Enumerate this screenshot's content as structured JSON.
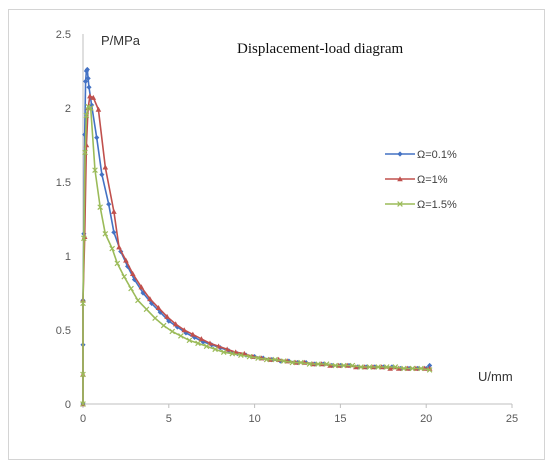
{
  "chart_data": {
    "type": "line",
    "title": "Displacement-load diagram",
    "xlabel": "U/mm",
    "ylabel": "P/MPa",
    "xlim": [
      0,
      25
    ],
    "ylim": [
      0,
      2.5
    ],
    "xticks": [
      "0",
      "5",
      "10",
      "15",
      "20",
      "25"
    ],
    "yticks": [
      "0",
      "0.5",
      "1",
      "1.5",
      "2",
      "2.5"
    ],
    "grid": false,
    "legend_position": "right",
    "series": [
      {
        "name": "Ω=0.1%",
        "color": "#4472C4",
        "marker": "diamond",
        "x": [
          0,
          0,
          0,
          0.05,
          0.1,
          0.15,
          0.2,
          0.25,
          0.3,
          0.35,
          0.5,
          0.8,
          1.1,
          1.5,
          1.8,
          2.2,
          2.6,
          3.0,
          3.5,
          4.0,
          4.5,
          5.0,
          5.5,
          6.0,
          6.5,
          7.0,
          7.5,
          8.0,
          8.5,
          9.0,
          9.5,
          10.0,
          10.5,
          11.0,
          11.5,
          12.0,
          12.5,
          13.0,
          13.5,
          14.0,
          14.5,
          15.0,
          15.5,
          16.0,
          16.5,
          17.0,
          17.5,
          18.0,
          18.5,
          19.0,
          19.5,
          20.0,
          20.2
        ],
        "y": [
          0,
          0.4,
          0.7,
          1.15,
          1.82,
          2.18,
          2.25,
          2.26,
          2.2,
          2.14,
          2.02,
          1.8,
          1.55,
          1.35,
          1.16,
          1.03,
          0.93,
          0.84,
          0.75,
          0.68,
          0.62,
          0.56,
          0.52,
          0.48,
          0.45,
          0.42,
          0.4,
          0.38,
          0.36,
          0.34,
          0.33,
          0.32,
          0.31,
          0.3,
          0.29,
          0.29,
          0.28,
          0.28,
          0.27,
          0.27,
          0.26,
          0.26,
          0.26,
          0.25,
          0.25,
          0.25,
          0.25,
          0.25,
          0.24,
          0.24,
          0.24,
          0.24,
          0.26
        ]
      },
      {
        "name": "Ω=1%",
        "color": "#C0504D",
        "marker": "triangle",
        "x": [
          0,
          0,
          0,
          0.1,
          0.2,
          0.3,
          0.4,
          0.6,
          0.9,
          1.3,
          1.8,
          2.1,
          2.5,
          2.9,
          3.4,
          3.9,
          4.4,
          4.9,
          5.4,
          5.9,
          6.4,
          6.9,
          7.4,
          7.9,
          8.4,
          8.9,
          9.4,
          9.9,
          10.4,
          10.9,
          11.4,
          11.9,
          12.4,
          12.9,
          13.4,
          13.9,
          14.4,
          14.9,
          15.4,
          15.9,
          16.4,
          16.9,
          17.4,
          17.9,
          18.4,
          18.9,
          19.4,
          19.9,
          20.2
        ],
        "y": [
          0,
          0.2,
          0.7,
          1.13,
          1.75,
          2.0,
          2.08,
          2.07,
          1.99,
          1.6,
          1.3,
          1.06,
          0.97,
          0.88,
          0.79,
          0.71,
          0.65,
          0.59,
          0.54,
          0.5,
          0.47,
          0.44,
          0.41,
          0.39,
          0.37,
          0.35,
          0.34,
          0.32,
          0.31,
          0.3,
          0.3,
          0.29,
          0.28,
          0.28,
          0.27,
          0.27,
          0.26,
          0.26,
          0.26,
          0.25,
          0.25,
          0.25,
          0.25,
          0.24,
          0.24,
          0.24,
          0.24,
          0.24,
          0.24
        ]
      },
      {
        "name": "Ω=1.5%",
        "color": "#9BBB59",
        "marker": "x",
        "x": [
          0,
          0,
          0,
          0.05,
          0.12,
          0.2,
          0.3,
          0.45,
          0.7,
          1.0,
          1.3,
          1.7,
          2.0,
          2.4,
          2.8,
          3.2,
          3.7,
          4.2,
          4.7,
          5.2,
          5.7,
          6.2,
          6.7,
          7.2,
          7.7,
          8.2,
          8.7,
          9.2,
          9.7,
          10.2,
          10.7,
          11.2,
          11.7,
          12.2,
          12.7,
          13.2,
          13.7,
          14.2,
          14.7,
          15.2,
          15.7,
          16.2,
          16.7,
          17.2,
          17.7,
          18.2,
          18.7,
          19.2,
          19.7,
          20.2
        ],
        "y": [
          0,
          0.2,
          0.68,
          1.12,
          1.7,
          1.95,
          2.01,
          2.0,
          1.58,
          1.33,
          1.15,
          1.05,
          0.95,
          0.86,
          0.78,
          0.7,
          0.64,
          0.58,
          0.53,
          0.49,
          0.46,
          0.43,
          0.41,
          0.39,
          0.37,
          0.35,
          0.34,
          0.33,
          0.32,
          0.31,
          0.3,
          0.3,
          0.29,
          0.28,
          0.28,
          0.27,
          0.27,
          0.27,
          0.26,
          0.26,
          0.26,
          0.25,
          0.25,
          0.25,
          0.25,
          0.25,
          0.24,
          0.24,
          0.24,
          0.23
        ]
      }
    ]
  }
}
